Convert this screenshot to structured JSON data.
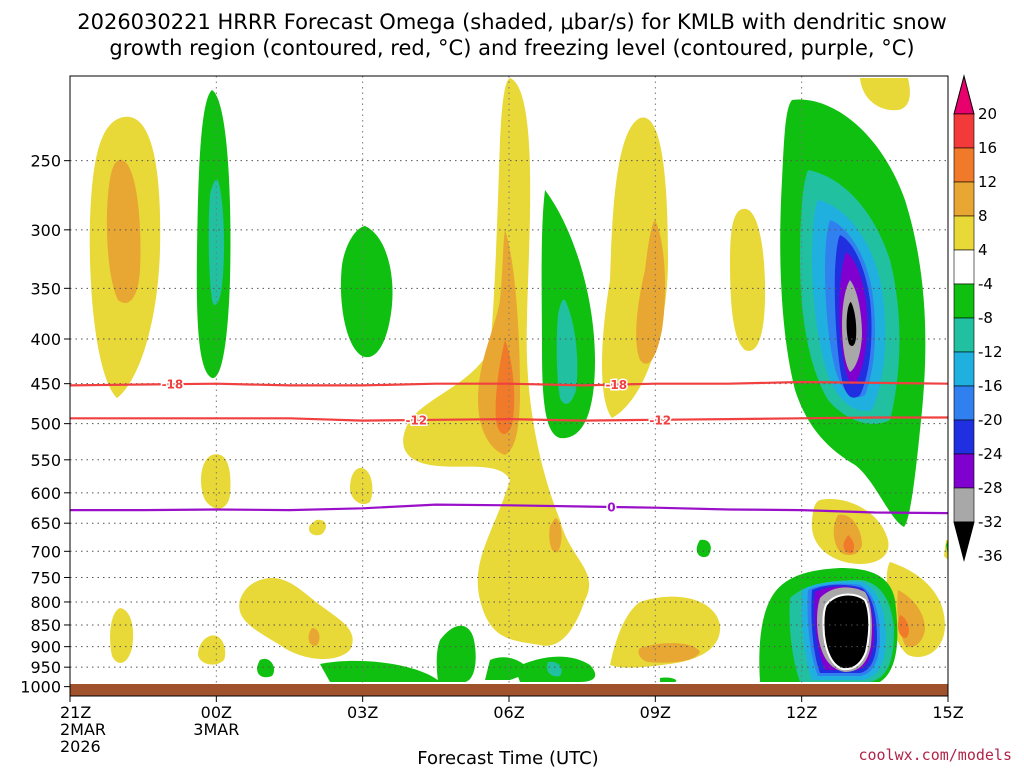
{
  "chart_data": {
    "type": "time-height contour",
    "title_line1": "2026030221 HRRR Forecast Omega (shaded, μbar/s) for KMLB with dendritic snow",
    "title_line2": "growth region (contoured, red, °C) and freezing level (contoured, purple, °C)",
    "xlabel": "Forecast Time (UTC)",
    "credit": "coolwx.com/models",
    "x_range_hours": [
      0,
      18
    ],
    "x_ticks": [
      {
        "hour": 0,
        "lines": [
          "21Z",
          "2MAR",
          "2026"
        ]
      },
      {
        "hour": 3,
        "lines": [
          "00Z",
          "3MAR"
        ]
      },
      {
        "hour": 6,
        "lines": [
          "03Z"
        ]
      },
      {
        "hour": 9,
        "lines": [
          "06Z"
        ]
      },
      {
        "hour": 12,
        "lines": [
          "09Z"
        ]
      },
      {
        "hour": 15,
        "lines": [
          "12Z"
        ]
      },
      {
        "hour": 18,
        "lines": [
          "15Z"
        ]
      }
    ],
    "y_axis_hPa": [
      1025,
      200
    ],
    "y_ticks": [
      250,
      300,
      350,
      400,
      450,
      500,
      550,
      600,
      650,
      700,
      750,
      800,
      850,
      900,
      950,
      1000
    ],
    "ground_color": "#a0522d",
    "colorbar": {
      "labels": [
        "20",
        "16",
        "12",
        "8",
        "4",
        "-4",
        "-8",
        "-12",
        "-16",
        "-20",
        "-24",
        "-28",
        "-32",
        "-36"
      ],
      "colors": [
        "#e8006c",
        "#f23a3a",
        "#f07a2a",
        "#e8a632",
        "#e8d838",
        "#ffffff",
        "#10c010",
        "#20c0a0",
        "#20b0e0",
        "#3080f0",
        "#2030e0",
        "#8000d0",
        "#a8a8a8",
        "#000000"
      ]
    },
    "contours": [
      {
        "name": "dendritic-minus18",
        "label": "-18",
        "color": "#f04040",
        "hour": [
          0,
          1.5,
          3,
          4.5,
          6,
          7.5,
          9,
          10.5,
          12,
          13.5,
          15,
          16.5,
          18
        ],
        "hPa": [
          452,
          451,
          450,
          452,
          452,
          450,
          450,
          452,
          450,
          450,
          448,
          449,
          450
        ],
        "label_hours": [
          2.1,
          11.2
        ]
      },
      {
        "name": "dendritic-minus12",
        "label": "-12",
        "color": "#f04040",
        "hour": [
          0,
          1.5,
          3,
          4.5,
          6,
          7.5,
          9,
          10.5,
          12,
          13.5,
          15,
          16.5,
          18
        ],
        "hPa": [
          493,
          493,
          493,
          493,
          496,
          495,
          494,
          496,
          495,
          494,
          493,
          492,
          492
        ],
        "label_hours": [
          7.1,
          12.1
        ]
      },
      {
        "name": "freezing-level-0C",
        "label": "0",
        "color": "#9a10c8",
        "hour": [
          0,
          1.5,
          3,
          4.5,
          6,
          7.5,
          9,
          10.5,
          12,
          13.5,
          15,
          16.5,
          18
        ],
        "hPa": [
          628,
          628,
          627,
          628,
          625,
          619,
          620,
          622,
          624,
          627,
          628,
          632,
          633
        ],
        "label_hours": [
          11.1
        ]
      }
    ]
  }
}
